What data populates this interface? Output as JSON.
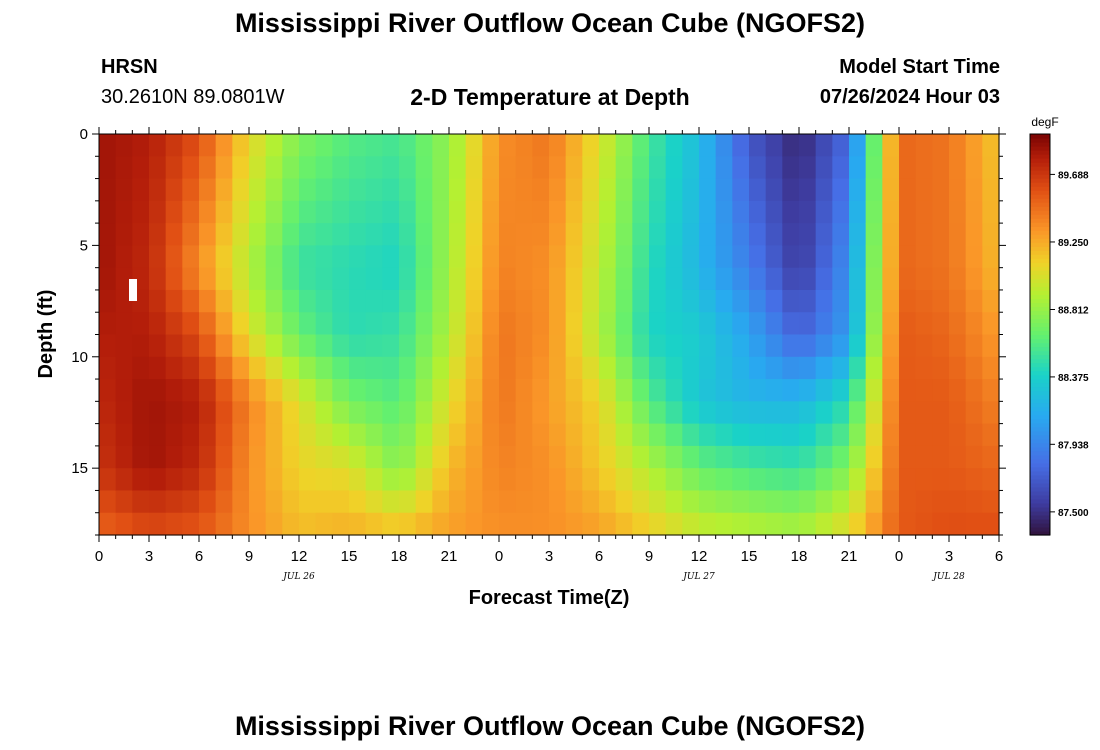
{
  "page": {
    "title": "Mississippi River Outflow Ocean Cube (NGOFS2)",
    "bottom_title": "Mississippi River Outflow Ocean Cube (NGOFS2)",
    "station": "HRSN",
    "coordinates": "30.2610N  89.0801W",
    "subtitle": "2-D Temperature at Depth",
    "model_start_label": "Model Start Time",
    "model_start_value": "07/26/2024 Hour 03"
  },
  "chart_data": {
    "type": "heatmap",
    "title": "2-D Temperature at Depth",
    "xlabel": "Forecast Time(Z)",
    "ylabel": "Depth (ft)",
    "xlim": [
      0,
      54
    ],
    "ylim": [
      0,
      18
    ],
    "y_inverted": true,
    "x_ticks": [
      0,
      3,
      6,
      9,
      12,
      15,
      18,
      21,
      24,
      27,
      30,
      33,
      36,
      39,
      42,
      45,
      48,
      51,
      54
    ],
    "x_tick_labels": [
      "0",
      "3",
      "6",
      "9",
      "12",
      "15",
      "18",
      "21",
      "0",
      "3",
      "6",
      "9",
      "12",
      "15",
      "18",
      "21",
      "0",
      "3",
      "6"
    ],
    "y_ticks": [
      0,
      5,
      10,
      15
    ],
    "y_tick_labels": [
      "0",
      "5",
      "10",
      "15"
    ],
    "date_labels": [
      {
        "x": 12,
        "text": "JUL 26"
      },
      {
        "x": 36,
        "text": "JUL 27"
      },
      {
        "x": 51,
        "text": "JUL 28"
      }
    ],
    "colorbar": {
      "unit": "degF",
      "min": 87.35,
      "max": 89.95,
      "ticks": [
        87.5,
        87.938,
        88.375,
        88.812,
        89.25,
        89.688
      ],
      "tick_labels": [
        "87.500",
        "87.938",
        "88.375",
        "88.812",
        "89.250",
        "89.688"
      ]
    },
    "grid": false,
    "value_rows_depth_ft": [
      0,
      6,
      9,
      12,
      15,
      18
    ],
    "value_cols_hour": [
      0,
      3,
      6,
      9,
      12,
      15,
      18,
      21,
      24,
      27,
      30,
      33,
      36,
      39,
      42,
      45,
      48,
      51,
      54
    ],
    "values_degF": [
      [
        89.85,
        89.8,
        89.6,
        89.1,
        88.75,
        88.6,
        88.55,
        88.8,
        89.35,
        89.45,
        89.05,
        88.55,
        88.25,
        87.7,
        87.45,
        87.8,
        89.5,
        89.45,
        89.15
      ],
      [
        89.85,
        89.75,
        89.35,
        88.9,
        88.5,
        88.45,
        88.4,
        88.85,
        89.4,
        89.35,
        88.95,
        88.45,
        88.2,
        87.9,
        87.55,
        88.0,
        89.5,
        89.45,
        89.2
      ],
      [
        89.8,
        89.8,
        89.6,
        89.05,
        88.65,
        88.45,
        88.5,
        88.9,
        89.45,
        89.35,
        88.9,
        88.4,
        88.35,
        88.1,
        87.75,
        88.05,
        89.55,
        89.5,
        89.3
      ],
      [
        89.75,
        89.85,
        89.8,
        89.4,
        89.05,
        88.7,
        88.6,
        89.05,
        89.45,
        89.3,
        89.1,
        88.6,
        88.3,
        88.2,
        88.2,
        88.45,
        89.55,
        89.55,
        89.4
      ],
      [
        89.7,
        89.85,
        89.75,
        89.35,
        89.1,
        89.05,
        88.75,
        89.2,
        89.4,
        89.35,
        89.15,
        88.9,
        88.65,
        88.55,
        88.5,
        88.75,
        89.55,
        89.55,
        89.5
      ],
      [
        89.5,
        89.6,
        89.55,
        89.35,
        89.2,
        89.25,
        89.2,
        89.3,
        89.35,
        89.35,
        89.3,
        89.15,
        89.0,
        88.95,
        88.9,
        89.1,
        89.55,
        89.6,
        89.6
      ]
    ]
  }
}
